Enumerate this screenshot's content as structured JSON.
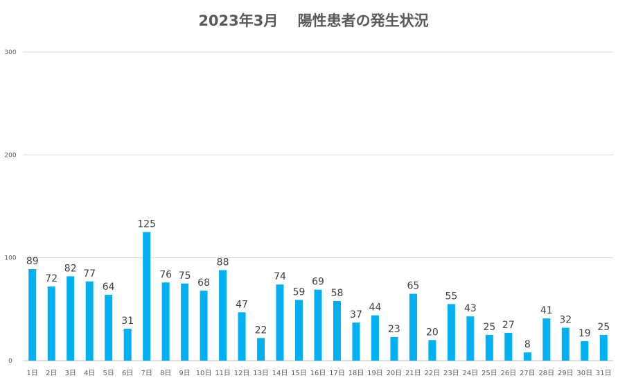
{
  "chart_data": {
    "type": "bar",
    "title": "2023年3月　 陽性患者の発生状況",
    "categories": [
      "1日",
      "2日",
      "3日",
      "4日",
      "5日",
      "6日",
      "7日",
      "8日",
      "9日",
      "10日",
      "11日",
      "12日",
      "13日",
      "14日",
      "15日",
      "16日",
      "17日",
      "18日",
      "19日",
      "20日",
      "21日",
      "22日",
      "23日",
      "24日",
      "25日",
      "26日",
      "27日",
      "28日",
      "29日",
      "30日",
      "31日"
    ],
    "values": [
      89,
      72,
      82,
      77,
      64,
      31,
      125,
      76,
      75,
      68,
      88,
      47,
      22,
      74,
      59,
      69,
      58,
      37,
      44,
      23,
      65,
      20,
      55,
      43,
      25,
      27,
      8,
      41,
      32,
      19,
      25
    ],
    "ylim": [
      0,
      300
    ],
    "yticks": [
      0,
      100,
      200,
      300
    ],
    "grid": true,
    "bar_color": "#00b0f0",
    "data_labels": true
  }
}
